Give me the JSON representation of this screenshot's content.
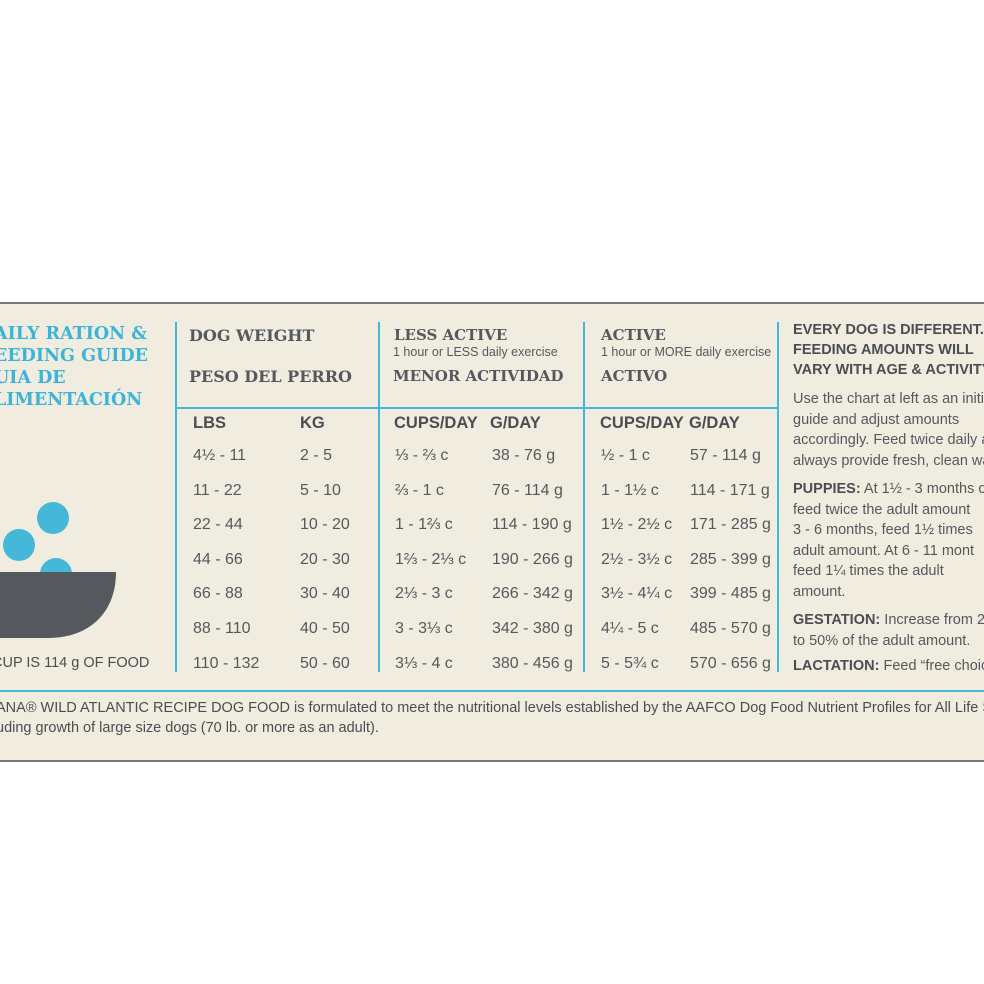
{
  "title": {
    "line1": "AILY RATION &",
    "line2": "EEDING GUIDE",
    "line3": "UIA DE",
    "line4": "LIMENTACIÓN"
  },
  "note": "CUP IS 114 g OF FOOD",
  "weight": {
    "heading_en": "DOG WEIGHT",
    "heading_es": "PESO DEL PERRO",
    "col_lbs": "LBS",
    "col_kg": "KG",
    "lbs": [
      "4½ - 11",
      "11 - 22",
      "22 - 44",
      "44 - 66",
      "66 - 88",
      "88 - 110",
      "110 - 132"
    ],
    "kg": [
      "2 - 5",
      "5 - 10",
      "10 - 20",
      "20 - 30",
      "30 - 40",
      "40 - 50",
      "50 - 60"
    ]
  },
  "less_active": {
    "heading_en": "LESS ACTIVE",
    "sub": "1 hour or LESS daily exercise",
    "heading_es": "MENOR ACTIVIDAD",
    "col_cups": "CUPS/DAY",
    "col_g": "G/DAY",
    "cups": [
      "⅓ - ⅔ c",
      "⅔ - 1 c",
      "1 - 1⅔ c",
      "1⅔ - 2⅓ c",
      "2⅓ - 3 c",
      "3 - 3⅓ c",
      "3⅓ - 4 c"
    ],
    "grams": [
      "38 - 76 g",
      "76 - 114 g",
      "114 - 190 g",
      "190 - 266 g",
      "266 - 342 g",
      "342 - 380 g",
      "380 - 456 g"
    ]
  },
  "active": {
    "heading_en": "ACTIVE",
    "sub": "1 hour or MORE daily exercise",
    "heading_es": "ACTIVO",
    "col_cups": "CUPS/DAY",
    "col_g": "G/DAY",
    "cups": [
      "½ - 1 c",
      "1 - 1½ c",
      "1½ - 2½ c",
      "2½ - 3½ c",
      "3½ - 4¼ c",
      "4¼ - 5 c",
      "5 - 5¾ c"
    ],
    "grams": [
      "57 - 114 g",
      "114 - 171 g",
      "171 - 285 g",
      "285 - 399 g",
      "399 - 485 g",
      "485 - 570 g",
      "570 - 656 g"
    ]
  },
  "right": {
    "hdr1": "EVERY DOG IS DIFFERENT.",
    "hdr2": "FEEDING AMOUNTS WILL",
    "hdr3": "VARY WITH AGE & ACTIVITY",
    "p1": [
      "Use the chart at left as an initial",
      "guide and adjust amounts",
      "accordingly. Feed twice daily a",
      "always provide fresh, clean wat"
    ],
    "puppies_label": "PUPPIES:",
    "puppies_first": " At 1½ - 3 months o",
    "puppies_lines": [
      "feed twice the adult amount",
      "3 - 6 months, feed 1½ times",
      "adult amount. At 6 - 11 mont",
      "feed 1¼ times the adult",
      "amount."
    ],
    "gestation_label": "GESTATION:",
    "gestation_first": " Increase from 2",
    "gestation_line2": "to 50% of the adult amount.",
    "lactation_label": "LACTATION:",
    "lactation_text": " Feed “free choic"
  },
  "footer": {
    "line1": "ANA® WILD ATLANTIC RECIPE DOG FOOD is formulated to meet the nutritional levels established by the AAFCO Dog Food Nutrient Profiles for All Life Stag",
    "line2": "uding growth of large size dogs (70 lb. or more as an adult)."
  },
  "colors": {
    "accent": "#45b7d8",
    "text": "#55585c",
    "bowl": "#55585c",
    "panel": "#f0ece0"
  }
}
